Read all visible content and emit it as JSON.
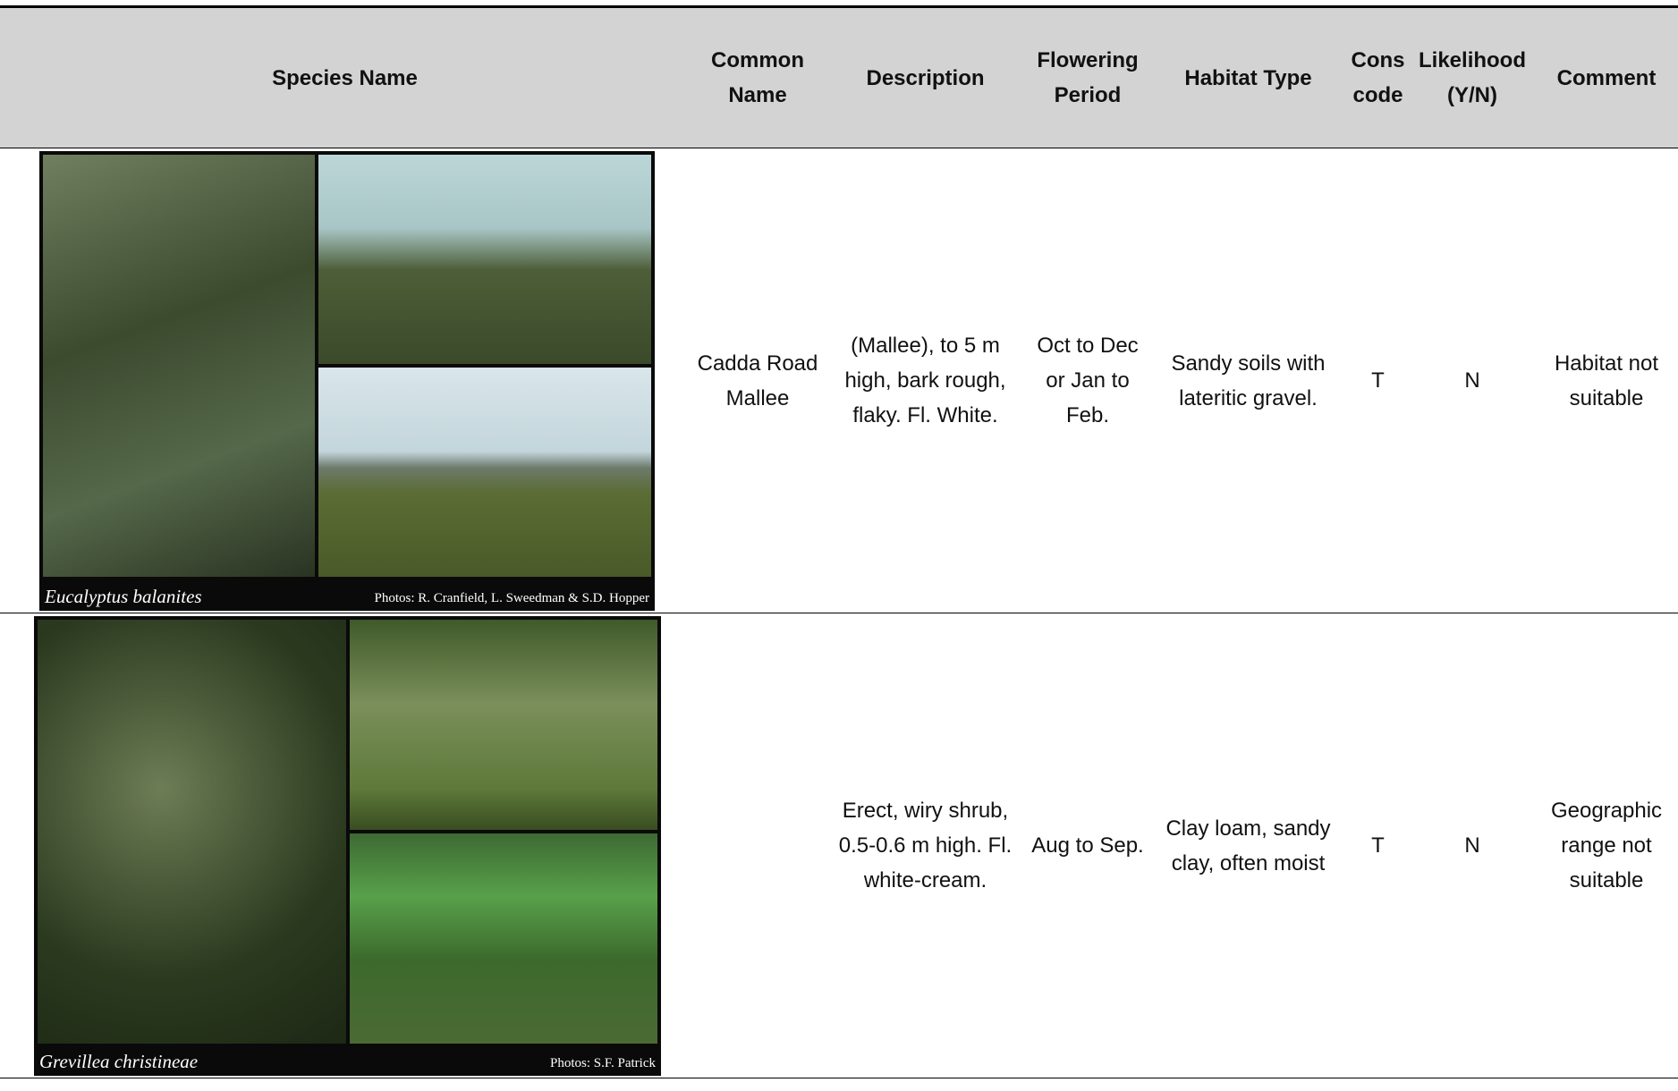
{
  "table": {
    "headers": [
      "Species Name",
      "Common Name",
      "Description",
      "Flowering Period",
      "Habitat Type",
      "Cons code",
      "Likelihood (Y/N)",
      "Comment"
    ],
    "rows": [
      {
        "species": "Eucalyptus balanites",
        "photo_credit": "Photos: R. Cranfield, L. Sweedman & S.D. Hopper",
        "cells": [
          "Cadda Road Mallee",
          "(Mallee), to 5 m high, bark rough, flaky. Fl. White.",
          "Oct to Dec or Jan to Feb.",
          "Sandy soils with lateritic gravel.",
          "T",
          "N",
          "Habitat not suitable"
        ]
      },
      {
        "species": "Grevillea christineae",
        "photo_credit": "Photos: S.F. Patrick",
        "cells": [
          "",
          "Erect, wiry shrub, 0.5-0.6 m high. Fl. white-cream.",
          "Aug to Sep.",
          "Clay loam, sandy clay, often moist",
          "T",
          "N",
          "Geographic range not suitable"
        ]
      }
    ]
  }
}
